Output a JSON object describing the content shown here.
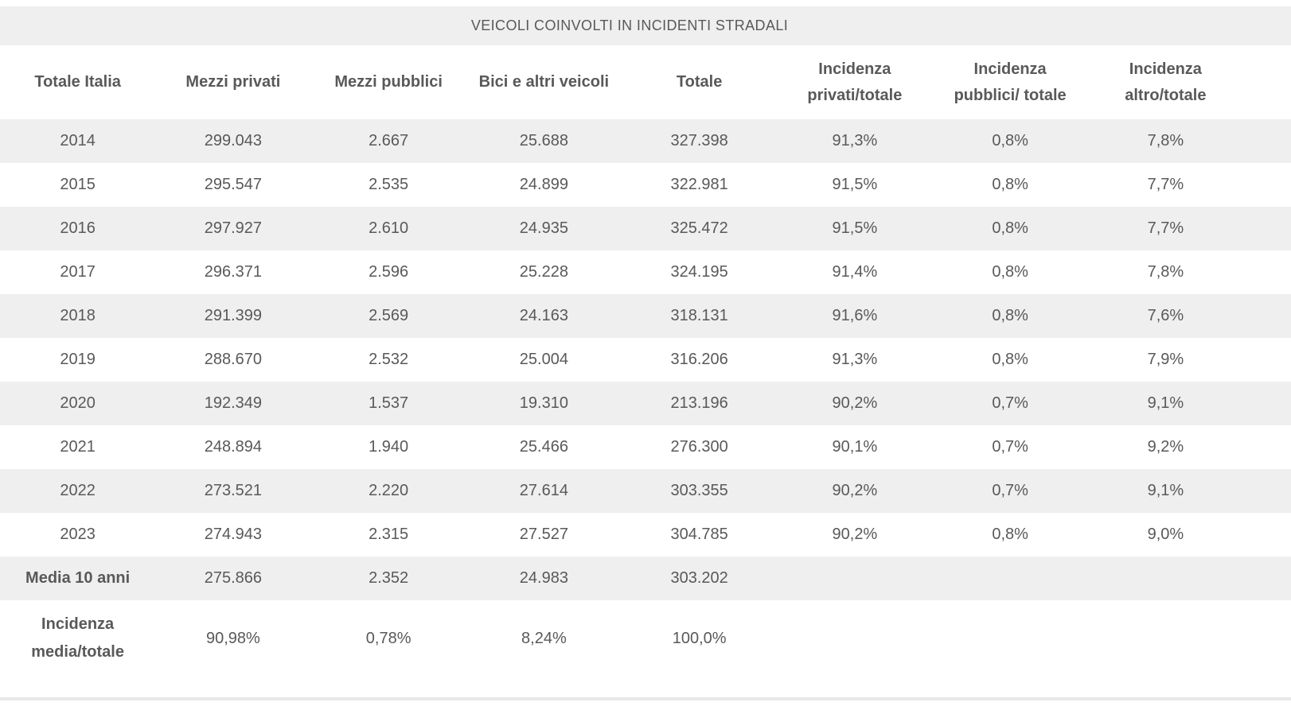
{
  "title": "VEICOLI COINVOLTI IN INCIDENTI STRADALI",
  "colors": {
    "row_band": "#efefef",
    "text": "#595959",
    "bottom_rule": "#e8e8e8"
  },
  "chart_data": {
    "type": "table",
    "title": "VEICOLI COINVOLTI IN INCIDENTI STRADALI",
    "columns": [
      "Totale Italia",
      "Mezzi privati",
      "Mezzi pubblici",
      "Bici e altri veicoli",
      "Totale",
      "Incidenza privati/totale",
      "Incidenza pubblici/ totale",
      "Incidenza altro/totale"
    ],
    "rows": [
      [
        "2014",
        "299.043",
        "2.667",
        "25.688",
        "327.398",
        "91,3%",
        "0,8%",
        "7,8%"
      ],
      [
        "2015",
        "295.547",
        "2.535",
        "24.899",
        "322.981",
        "91,5%",
        "0,8%",
        "7,7%"
      ],
      [
        "2016",
        "297.927",
        "2.610",
        "24.935",
        "325.472",
        "91,5%",
        "0,8%",
        "7,7%"
      ],
      [
        "2017",
        "296.371",
        "2.596",
        "25.228",
        "324.195",
        "91,4%",
        "0,8%",
        "7,8%"
      ],
      [
        "2018",
        "291.399",
        "2.569",
        "24.163",
        "318.131",
        "91,6%",
        "0,8%",
        "7,6%"
      ],
      [
        "2019",
        "288.670",
        "2.532",
        "25.004",
        "316.206",
        "91,3%",
        "0,8%",
        "7,9%"
      ],
      [
        "2020",
        "192.349",
        "1.537",
        "19.310",
        "213.196",
        "90,2%",
        "0,7%",
        "9,1%"
      ],
      [
        "2021",
        "248.894",
        "1.940",
        "25.466",
        "276.300",
        "90,1%",
        "0,7%",
        "9,2%"
      ],
      [
        "2022",
        "273.521",
        "2.220",
        "27.614",
        "303.355",
        "90,2%",
        "0,7%",
        "9,1%"
      ],
      [
        "2023",
        "274.943",
        "2.315",
        "27.527",
        "304.785",
        "90,2%",
        "0,8%",
        "9,0%"
      ],
      [
        "Media 10 anni",
        "275.866",
        "2.352",
        "24.983",
        "303.202",
        "",
        "",
        ""
      ],
      [
        "Incidenza media/totale",
        "90,98%",
        "0,78%",
        "8,24%",
        "100,0%",
        "",
        "",
        ""
      ]
    ],
    "bold_label_rows": [
      10,
      11
    ],
    "shaded_rows": [
      0,
      2,
      4,
      6,
      8,
      10
    ],
    "grid": "zebra-stripes-no-gridlines",
    "legend": "none"
  }
}
